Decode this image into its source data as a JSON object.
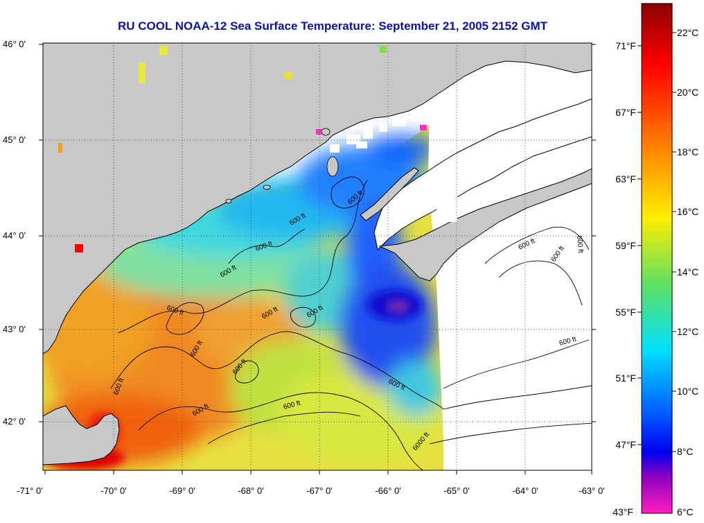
{
  "title": "RU COOL  NOAA-12  Sea Surface Temperature:  September 21, 2005 2152 GMT",
  "map": {
    "lon_ticks": [
      "-71° 0'",
      "-70° 0'",
      "-69° 0'",
      "-68° 0'",
      "-67° 0'",
      "-66° 0'",
      "-65° 0'",
      "-64° 0'",
      "-63° 0'"
    ],
    "lat_ticks": [
      "46° 0'",
      "45° 0'",
      "44° 0'",
      "43° 0'",
      "42° 0'"
    ],
    "contour_label": "600 ft",
    "contour_label_deep": "6000 ft",
    "colors": {
      "land": "#c8c8c8",
      "cloud": "#ffffff",
      "grid": "#555555"
    }
  },
  "colorbar": {
    "celsius_labels": [
      "22°C",
      "20°C",
      "18°C",
      "16°C",
      "14°C",
      "12°C",
      "10°C",
      "8°C",
      "6°C"
    ],
    "fahrenheit_labels": [
      "71°F",
      "67°F",
      "63°F",
      "59°F",
      "55°F",
      "51°F",
      "47°F",
      "43°F"
    ],
    "stops": [
      "#8b0000",
      "#ff0000",
      "#ff7a00",
      "#ffee00",
      "#80e040",
      "#00e0e0",
      "#0090ff",
      "#0000ee",
      "#8000c0",
      "#ff20c0"
    ]
  }
}
